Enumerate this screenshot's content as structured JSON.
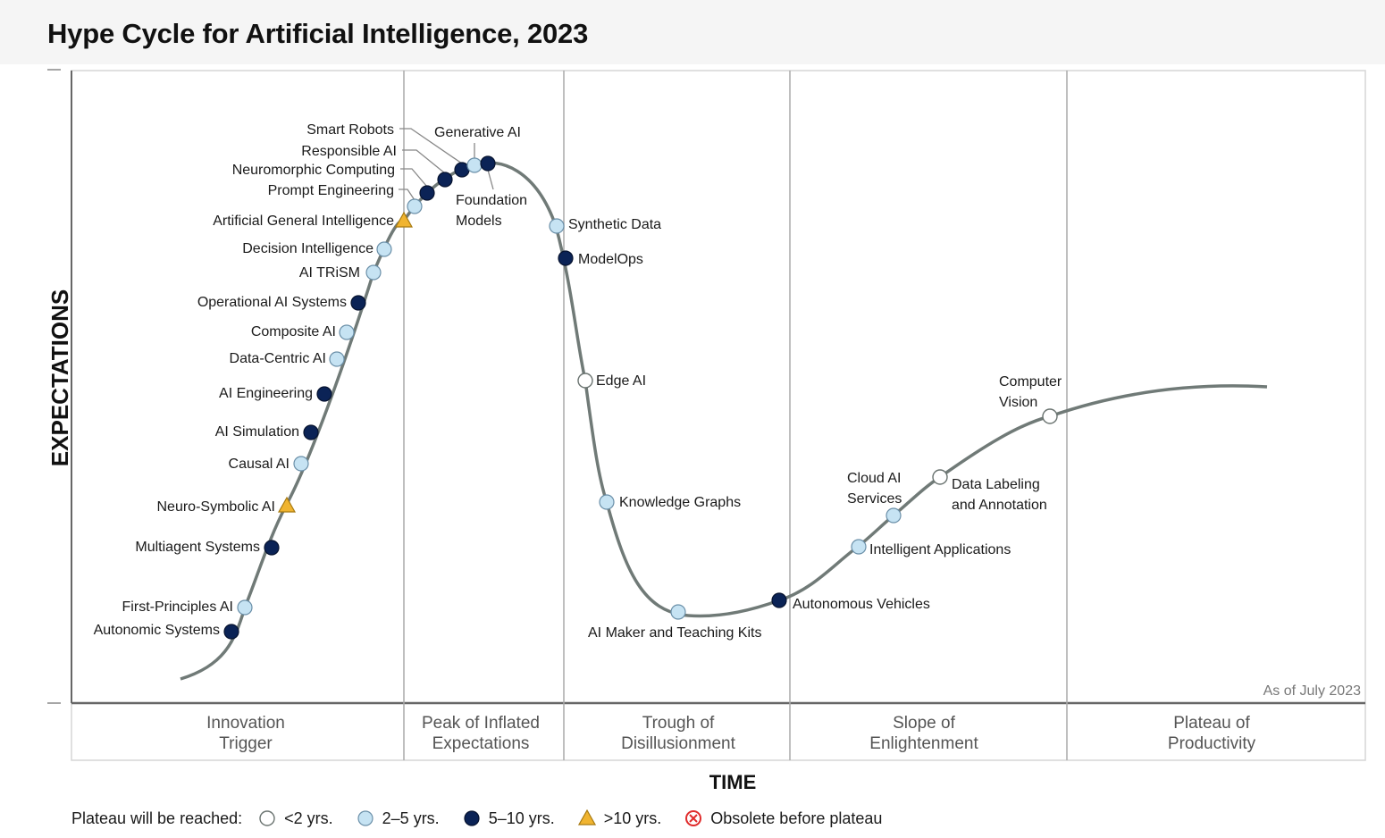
{
  "title": "Hype Cycle for Artificial Intelligence, 2023",
  "chart_data": {
    "type": "scatter",
    "title": "Hype Cycle for Artificial Intelligence, 2023",
    "xlabel": "TIME",
    "ylabel": "EXPECTATIONS",
    "as_of": "As of July 2023",
    "grid": false,
    "legend_position": "bottom",
    "phases": [
      {
        "line1": "Innovation",
        "line2": "Trigger"
      },
      {
        "line1": "Peak of Inflated",
        "line2": "Expectations"
      },
      {
        "line1": "Trough of",
        "line2": "Disillusionment"
      },
      {
        "line1": "Slope of",
        "line2": "Enlightenment"
      },
      {
        "line1": "Plateau of",
        "line2": "Productivity"
      }
    ],
    "legend": {
      "title": "Plateau will be reached:",
      "items": [
        {
          "key": "lt2",
          "label": "<2 yrs."
        },
        {
          "key": "2to5",
          "label": "2–5 yrs."
        },
        {
          "key": "5to10",
          "label": "5–10 yrs."
        },
        {
          "key": "gt10",
          "label": ">10 yrs."
        },
        {
          "key": "obsolete",
          "label": "Obsolete before plateau"
        }
      ]
    },
    "colors": {
      "lt2": "#ffffff",
      "2to5": "#c6e3f3",
      "5to10": "#0b2356",
      "gt10": "#f0b430",
      "obsolete": "#e02b2b",
      "curve": "#707a77",
      "axis": "#666666",
      "divider": "#aaaaaa"
    },
    "technologies": [
      {
        "name": "Autonomic Systems",
        "category": "5to10"
      },
      {
        "name": "First-Principles AI",
        "category": "2to5"
      },
      {
        "name": "Multiagent Systems",
        "category": "5to10"
      },
      {
        "name": "Neuro-Symbolic AI",
        "category": "gt10"
      },
      {
        "name": "Causal AI",
        "category": "2to5"
      },
      {
        "name": "AI Simulation",
        "category": "5to10"
      },
      {
        "name": "AI Engineering",
        "category": "5to10"
      },
      {
        "name": "Data-Centric AI",
        "category": "2to5"
      },
      {
        "name": "Composite AI",
        "category": "2to5"
      },
      {
        "name": "Operational AI Systems",
        "category": "5to10"
      },
      {
        "name": "AI TRiSM",
        "category": "2to5"
      },
      {
        "name": "Decision Intelligence",
        "category": "2to5"
      },
      {
        "name": "Artificial General Intelligence",
        "category": "gt10"
      },
      {
        "name": "Prompt Engineering",
        "category": "2to5"
      },
      {
        "name": "Neuromorphic Computing",
        "category": "5to10"
      },
      {
        "name": "Responsible AI",
        "category": "5to10"
      },
      {
        "name": "Smart Robots",
        "category": "5to10"
      },
      {
        "name": "Generative AI",
        "category": "2to5"
      },
      {
        "name": "Foundation Models",
        "category": "5to10"
      },
      {
        "name": "Synthetic Data",
        "category": "2to5"
      },
      {
        "name": "ModelOps",
        "category": "5to10"
      },
      {
        "name": "Edge AI",
        "category": "lt2"
      },
      {
        "name": "Knowledge Graphs",
        "category": "2to5"
      },
      {
        "name": "AI Maker and Teaching Kits",
        "category": "2to5"
      },
      {
        "name": "Autonomous Vehicles",
        "category": "5to10"
      },
      {
        "name": "Intelligent Applications",
        "category": "2to5"
      },
      {
        "name": "Cloud AI Services",
        "category": "2to5"
      },
      {
        "name": "Data Labeling and Annotation",
        "category": "lt2"
      },
      {
        "name": "Computer Vision",
        "category": "lt2"
      }
    ]
  }
}
